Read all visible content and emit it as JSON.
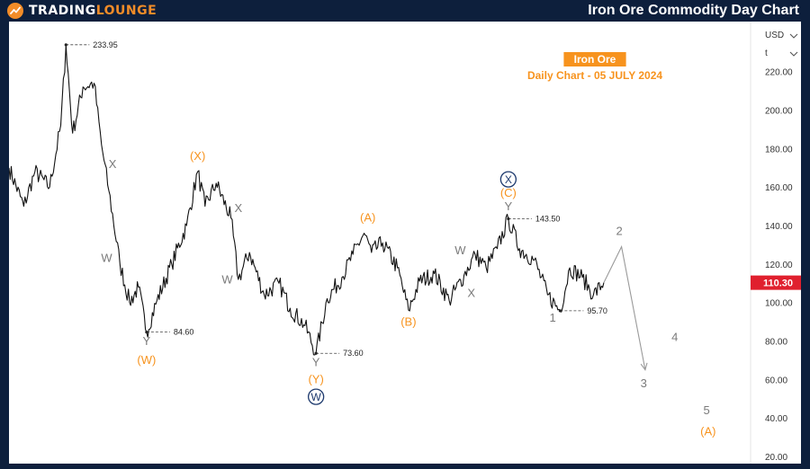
{
  "header": {
    "logo_text_main": "TRADING",
    "logo_text_accent": "LOUNGE",
    "logo_icon": "tradinglounge-logo-icon",
    "title": "Iron Ore Commodity Day Chart"
  },
  "colors": {
    "background": "#0d1f3c",
    "brand_orange": "#f28c28",
    "wave_orange": "#f7931e",
    "wave_gray": "#7a7a7a",
    "circle_navy": "#1e3a6e",
    "price_tag": "#e0202e",
    "price_line": "#111111"
  },
  "chart_data": {
    "type": "line",
    "title": "Iron Ore",
    "subtitle": "Daily Chart - 05 JULY 2024",
    "currency": "USD",
    "scale_menu": "t",
    "current_price_label": "110.30",
    "current_price": 110.3,
    "x_domain": [
      0,
      100
    ],
    "ylim": [
      20,
      224
    ],
    "yticks": [
      {
        "value": 220,
        "label": "220.00"
      },
      {
        "value": 200,
        "label": "200.00"
      },
      {
        "value": 180,
        "label": "180.00"
      },
      {
        "value": 160,
        "label": "160.00"
      },
      {
        "value": 140,
        "label": "140.00"
      },
      {
        "value": 120,
        "label": "120.00"
      },
      {
        "value": 100,
        "label": "100.00"
      },
      {
        "value": 80,
        "label": "80.00"
      },
      {
        "value": 60,
        "label": "60.00"
      },
      {
        "value": 40,
        "label": "40.00"
      },
      {
        "value": 20,
        "label": "20.00"
      }
    ],
    "price_path": [
      [
        0.0,
        170
      ],
      [
        2.0,
        150
      ],
      [
        3.5,
        168
      ],
      [
        5.5,
        160
      ],
      [
        7.0,
        192
      ],
      [
        7.7,
        233.95
      ],
      [
        8.6,
        188
      ],
      [
        10.0,
        212
      ],
      [
        11.5,
        214
      ],
      [
        12.5,
        182
      ],
      [
        13.5,
        158
      ],
      [
        15.0,
        120
      ],
      [
        16.3,
        100
      ],
      [
        17.5,
        108
      ],
      [
        18.6,
        84.6
      ],
      [
        20.0,
        101
      ],
      [
        22.0,
        120
      ],
      [
        24.0,
        140
      ],
      [
        25.5,
        168
      ],
      [
        26.5,
        150
      ],
      [
        28.0,
        162
      ],
      [
        30.0,
        144
      ],
      [
        31.0,
        112
      ],
      [
        32.5,
        126
      ],
      [
        34.5,
        104
      ],
      [
        36.5,
        110
      ],
      [
        38.0,
        97
      ],
      [
        40.0,
        88
      ],
      [
        41.5,
        73.6
      ],
      [
        43.0,
        102
      ],
      [
        45.0,
        113
      ],
      [
        46.5,
        125
      ],
      [
        48.0,
        136
      ],
      [
        49.0,
        126
      ],
      [
        50.5,
        131
      ],
      [
        52.5,
        118
      ],
      [
        54.0,
        96
      ],
      [
        55.5,
        111
      ],
      [
        57.5,
        115
      ],
      [
        59.5,
        101
      ],
      [
        61.5,
        114
      ],
      [
        63.0,
        125
      ],
      [
        64.5,
        118
      ],
      [
        66.0,
        128
      ],
      [
        67.5,
        143.5
      ],
      [
        69.0,
        128
      ],
      [
        71.0,
        122
      ],
      [
        72.8,
        104
      ],
      [
        74.5,
        95.7
      ],
      [
        75.8,
        118
      ],
      [
        77.5,
        113
      ],
      [
        79.0,
        104
      ],
      [
        80.4,
        110.3
      ]
    ],
    "projection_path": [
      [
        80.4,
        110.3
      ],
      [
        82.8,
        129
      ],
      [
        86.0,
        65
      ]
    ],
    "price_annotations": [
      {
        "x": 7.7,
        "y": 233.95,
        "label": "233.95",
        "side": "right"
      },
      {
        "x": 18.6,
        "y": 84.6,
        "label": "84.60",
        "side": "right"
      },
      {
        "x": 41.5,
        "y": 73.6,
        "label": "73.60",
        "side": "right"
      },
      {
        "x": 67.5,
        "y": 143.5,
        "label": "143.50",
        "side": "right"
      },
      {
        "x": 74.5,
        "y": 95.7,
        "label": "95.70",
        "side": "right"
      }
    ],
    "wave_labels": [
      {
        "text": "X",
        "x": 14.0,
        "y": 170,
        "color": "gray"
      },
      {
        "text": "W",
        "x": 13.2,
        "y": 121,
        "color": "gray"
      },
      {
        "text": "Y",
        "x": 18.6,
        "y": 78,
        "color": "gray"
      },
      {
        "text": "(W)",
        "x": 18.6,
        "y": 68,
        "color": "orange"
      },
      {
        "text": "(X)",
        "x": 25.5,
        "y": 174,
        "color": "orange"
      },
      {
        "text": "X",
        "x": 31.0,
        "y": 147,
        "color": "gray"
      },
      {
        "text": "W",
        "x": 29.5,
        "y": 110,
        "color": "gray"
      },
      {
        "text": "Y",
        "x": 41.5,
        "y": 67,
        "color": "gray"
      },
      {
        "text": "(Y)",
        "x": 41.5,
        "y": 58,
        "color": "orange"
      },
      {
        "text": "(A)",
        "x": 48.5,
        "y": 142,
        "color": "orange"
      },
      {
        "text": "(B)",
        "x": 54.0,
        "y": 88,
        "color": "orange"
      },
      {
        "text": "W",
        "x": 61.0,
        "y": 125,
        "color": "gray"
      },
      {
        "text": "X",
        "x": 62.5,
        "y": 103,
        "color": "gray"
      },
      {
        "text": "(C)",
        "x": 67.5,
        "y": 155,
        "color": "orange"
      },
      {
        "text": "Y",
        "x": 67.5,
        "y": 148,
        "color": "gray"
      },
      {
        "text": "1",
        "x": 73.5,
        "y": 90,
        "color": "gray"
      },
      {
        "text": "2",
        "x": 82.5,
        "y": 135,
        "color": "gray"
      },
      {
        "text": "3",
        "x": 85.8,
        "y": 56,
        "color": "gray"
      },
      {
        "text": "4",
        "x": 90.0,
        "y": 80,
        "color": "gray"
      },
      {
        "text": "5",
        "x": 94.3,
        "y": 42,
        "color": "gray"
      },
      {
        "text": "(A)",
        "x": 94.5,
        "y": 31,
        "color": "orange"
      }
    ],
    "circled_labels": [
      {
        "text": "W",
        "x": 41.5,
        "y": 51
      },
      {
        "text": "X",
        "x": 67.5,
        "y": 164
      }
    ]
  }
}
